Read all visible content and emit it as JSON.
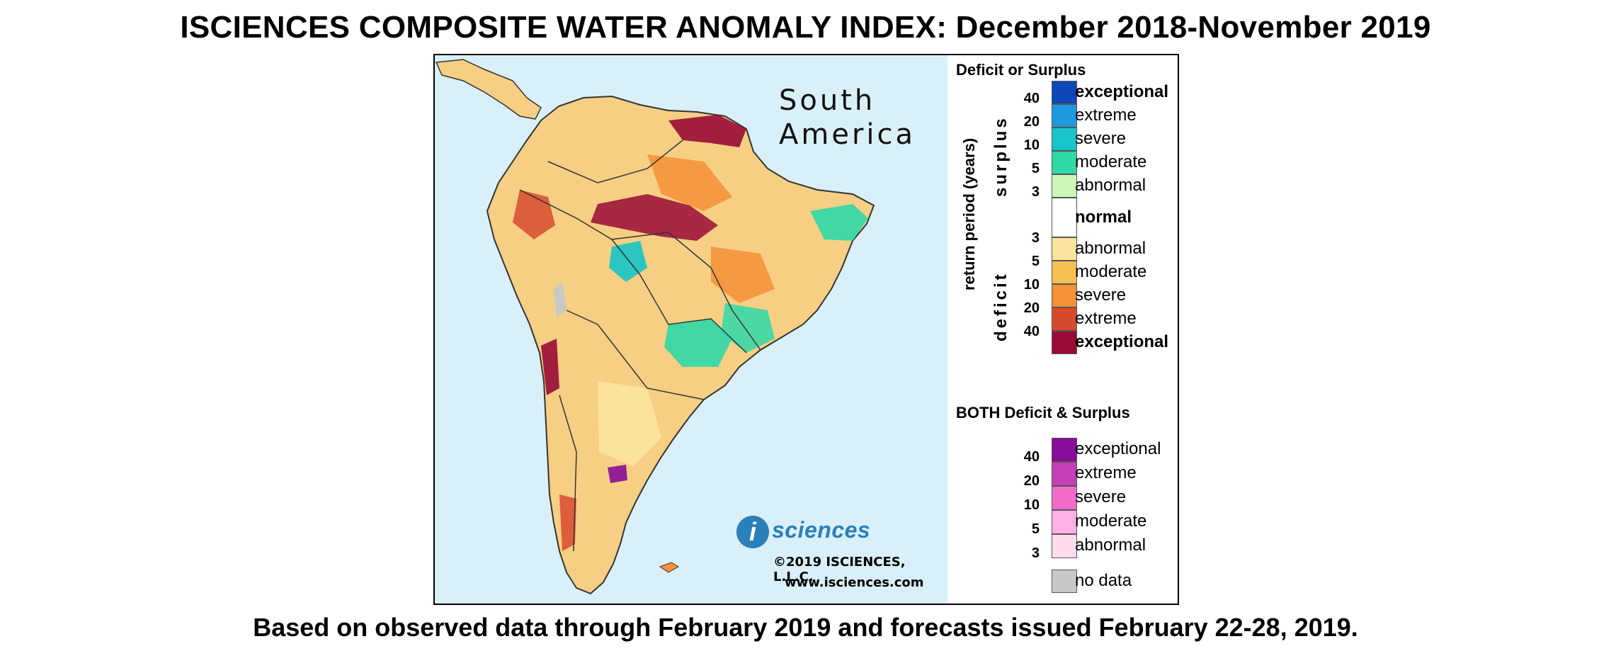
{
  "title": "ISCIENCES COMPOSITE WATER ANOMALY INDEX: December 2018-November 2019",
  "subtitle": "Based on observed data through February 2019 and forecasts issued February 22-28, 2019.",
  "map": {
    "region_label_line1": "South",
    "region_label_line2": "America",
    "logo_letter": "i",
    "logo_text": "sciences",
    "copyright": "©2019 ISCIENCES, L.L.C.",
    "website": "www.isciences.com",
    "colors": {
      "ocean": "#daf0f8",
      "land_base": "#f6cf84",
      "border": "#333333"
    }
  },
  "legend": {
    "heading_main": "Deficit or Surplus",
    "axis_label": "return period (years)",
    "surplus_label": "surplus",
    "deficit_label": "deficit",
    "surplus_ticks": [
      "40",
      "20",
      "10",
      "5",
      "3"
    ],
    "deficit_ticks": [
      "3",
      "5",
      "10",
      "20",
      "40"
    ],
    "surplus_levels": [
      {
        "label": "exceptional",
        "color": "#0d47b8",
        "bold": true
      },
      {
        "label": "extreme",
        "color": "#1e98de",
        "bold": false
      },
      {
        "label": "severe",
        "color": "#16c4c9",
        "bold": false
      },
      {
        "label": "moderate",
        "color": "#2fd8a8",
        "bold": false
      },
      {
        "label": "abnormal",
        "color": "#ccf7b8",
        "bold": false
      }
    ],
    "normal": {
      "label": "normal",
      "color": "#ffffff"
    },
    "deficit_levels": [
      {
        "label": "abnormal",
        "color": "#fde49e"
      },
      {
        "label": "moderate",
        "color": "#f8bf55"
      },
      {
        "label": "severe",
        "color": "#f59137"
      },
      {
        "label": "extreme",
        "color": "#d84a2e"
      },
      {
        "label": "exceptional",
        "color": "#980b35"
      }
    ],
    "heading_both": "BOTH Deficit & Surplus",
    "both_ticks": [
      "40",
      "20",
      "10",
      "5",
      "3"
    ],
    "both_levels": [
      {
        "label": "exceptional",
        "color": "#8a0c9a"
      },
      {
        "label": "extreme",
        "color": "#c43fb8"
      },
      {
        "label": "severe",
        "color": "#f06cc8"
      },
      {
        "label": "moderate",
        "color": "#fcb0e4"
      },
      {
        "label": "abnormal",
        "color": "#fedcee"
      }
    ],
    "no_data": {
      "label": "no data",
      "color": "#c8c8c8"
    }
  }
}
